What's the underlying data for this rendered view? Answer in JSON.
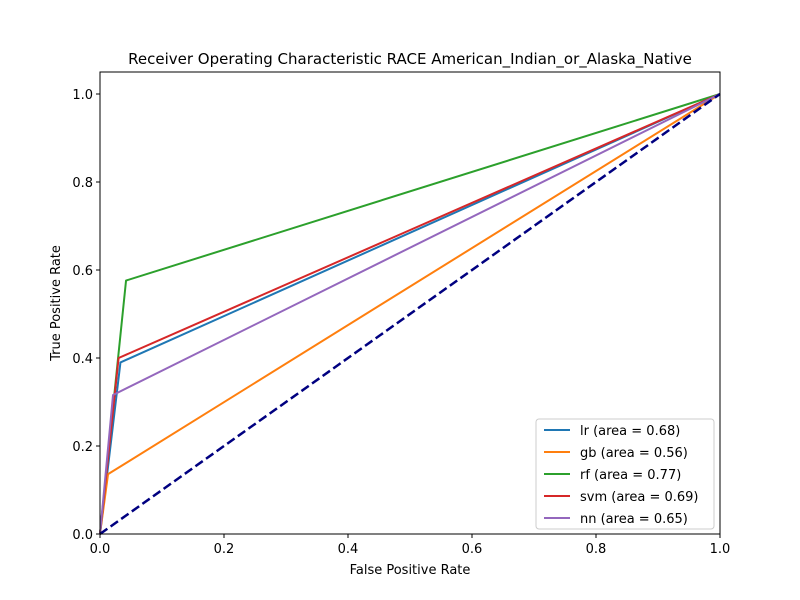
{
  "chart_data": {
    "type": "line",
    "title": "Receiver Operating Characteristic RACE  American_Indian_or_Alaska_Native",
    "xlabel": "False Positive Rate",
    "ylabel": "True Positive Rate",
    "xlim": [
      0.0,
      1.0
    ],
    "ylim": [
      0.0,
      1.05
    ],
    "xticks": [
      0.0,
      0.2,
      0.4,
      0.6,
      0.8,
      1.0
    ],
    "yticks": [
      0.0,
      0.2,
      0.4,
      0.6,
      0.8,
      1.0
    ],
    "xtick_labels": [
      "0.0",
      "0.2",
      "0.4",
      "0.6",
      "0.8",
      "1.0"
    ],
    "ytick_labels": [
      "0.0",
      "0.2",
      "0.4",
      "0.6",
      "0.8",
      "1.0"
    ],
    "grid": false,
    "legend_position": "bottom-right",
    "series": [
      {
        "name": "lr (area = 0.68)",
        "color": "#1f77b4",
        "x": [
          0.0,
          0.033,
          1.0
        ],
        "y": [
          0.0,
          0.39,
          1.0
        ]
      },
      {
        "name": "gb (area = 0.56)",
        "color": "#ff7f0e",
        "x": [
          0.0,
          0.013,
          1.0
        ],
        "y": [
          0.0,
          0.136,
          1.0
        ]
      },
      {
        "name": "rf (area = 0.77)",
        "color": "#2ca02c",
        "x": [
          0.0,
          0.042,
          1.0
        ],
        "y": [
          0.0,
          0.576,
          1.0
        ]
      },
      {
        "name": "svm (area = 0.69)",
        "color": "#d62728",
        "x": [
          0.0,
          0.03,
          1.0
        ],
        "y": [
          0.0,
          0.4,
          1.0
        ]
      },
      {
        "name": "nn (area = 0.65)",
        "color": "#9467bd",
        "x": [
          0.0,
          0.021,
          1.0
        ],
        "y": [
          0.0,
          0.316,
          1.0
        ]
      }
    ],
    "reference_line": {
      "color": "#000080",
      "style": "dashed",
      "x": [
        0.0,
        1.0
      ],
      "y": [
        0.0,
        1.0
      ]
    }
  }
}
